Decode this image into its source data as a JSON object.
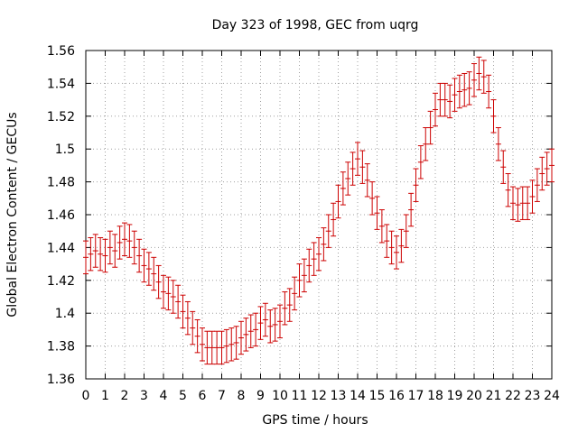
{
  "chart_data": {
    "type": "scatter",
    "title": "Day 323 of 1998, GEC from uqrg",
    "xlabel": "GPS time / hours",
    "ylabel": "Global Electron Content / GECUs",
    "xlim": [
      0,
      24
    ],
    "ylim": [
      1.36,
      1.56
    ],
    "xticks": [
      "0",
      "1",
      "2",
      "3",
      "4",
      "5",
      "6",
      "7",
      "8",
      "9",
      "10",
      "11",
      "12",
      "13",
      "14",
      "15",
      "16",
      "17",
      "18",
      "19",
      "20",
      "21",
      "22",
      "23",
      "24"
    ],
    "yticks": [
      "1.36",
      "1.38",
      "1.4",
      "1.42",
      "1.44",
      "1.46",
      "1.48",
      "1.5",
      "1.52",
      "1.54",
      "1.56"
    ],
    "grid": true,
    "color": "#cc0000",
    "error": 0.01,
    "series": [
      {
        "x": [
          0.0,
          0.25,
          0.5,
          0.75,
          1.0,
          1.25,
          1.5,
          1.75,
          2.0,
          2.25,
          2.5,
          2.75,
          3.0,
          3.25,
          3.5,
          3.75,
          4.0,
          4.25,
          4.5,
          4.75,
          5.0,
          5.25,
          5.5,
          5.75,
          6.0,
          6.25,
          6.5,
          6.75,
          7.0,
          7.25,
          7.5,
          7.75,
          8.0,
          8.25,
          8.5,
          8.75,
          9.0,
          9.25,
          9.5,
          9.75,
          10.0,
          10.25,
          10.5,
          10.75,
          11.0,
          11.25,
          11.5,
          11.75,
          12.0,
          12.25,
          12.5,
          12.75,
          13.0,
          13.25,
          13.5,
          13.75,
          14.0,
          14.25,
          14.5,
          14.75,
          15.0,
          15.25,
          15.5,
          15.75,
          16.0,
          16.25,
          16.5,
          16.75,
          17.0,
          17.25,
          17.5,
          17.75,
          18.0,
          18.25,
          18.5,
          18.75,
          19.0,
          19.25,
          19.5,
          19.75,
          20.0,
          20.25,
          20.5,
          20.75,
          21.0,
          21.25,
          21.5,
          21.75,
          22.0,
          22.25,
          22.5,
          22.75,
          23.0,
          23.25,
          23.5,
          23.75,
          24.0
        ],
        "y": [
          1.434,
          1.436,
          1.438,
          1.436,
          1.435,
          1.44,
          1.438,
          1.443,
          1.445,
          1.444,
          1.44,
          1.435,
          1.429,
          1.427,
          1.424,
          1.419,
          1.413,
          1.412,
          1.41,
          1.407,
          1.401,
          1.397,
          1.391,
          1.386,
          1.381,
          1.379,
          1.379,
          1.379,
          1.379,
          1.38,
          1.381,
          1.382,
          1.385,
          1.387,
          1.389,
          1.39,
          1.394,
          1.396,
          1.392,
          1.393,
          1.395,
          1.403,
          1.405,
          1.412,
          1.42,
          1.423,
          1.429,
          1.433,
          1.436,
          1.442,
          1.45,
          1.457,
          1.468,
          1.476,
          1.482,
          1.488,
          1.494,
          1.489,
          1.481,
          1.47,
          1.461,
          1.453,
          1.444,
          1.44,
          1.437,
          1.441,
          1.45,
          1.463,
          1.478,
          1.492,
          1.503,
          1.513,
          1.524,
          1.53,
          1.53,
          1.529,
          1.533,
          1.535,
          1.536,
          1.537,
          1.542,
          1.546,
          1.544,
          1.535,
          1.52,
          1.503,
          1.489,
          1.475,
          1.467,
          1.466,
          1.467,
          1.467,
          1.471,
          1.478,
          1.485,
          1.488,
          1.49
        ]
      }
    ]
  }
}
